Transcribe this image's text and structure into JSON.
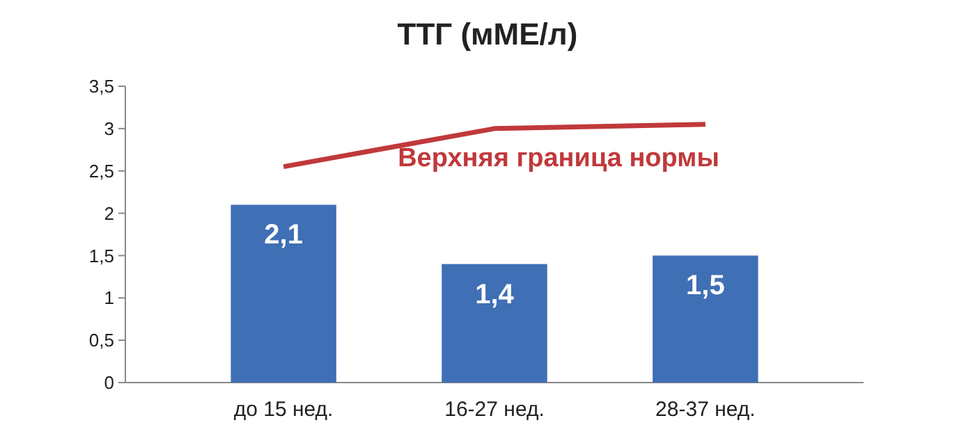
{
  "chart_data": {
    "type": "bar",
    "title": "ТТГ (мМЕ/л)",
    "categories": [
      "до 15 нед.",
      "16-27 нед.",
      "28-37 нед."
    ],
    "series": [
      {
        "color": "#3f6fb5",
        "values": [
          2.1,
          1.4,
          1.5
        ],
        "value_labels": [
          "2,1",
          "1,4",
          "1,5"
        ]
      },
      {
        "type": "line",
        "name": "Верхняя граница нормы",
        "color": "#c0393b",
        "values": [
          2.55,
          3.0,
          3.05
        ]
      }
    ],
    "ylim": [
      0,
      3.5
    ],
    "yticks": [
      0,
      {
        "value": 0.5,
        "label": "0,5"
      },
      1,
      {
        "value": 1.5,
        "label": "1,5"
      },
      2,
      {
        "value": 2.5,
        "label": "2,5"
      },
      3,
      {
        "value": 3.5,
        "label": "3,5"
      }
    ],
    "grid": false,
    "legend": false,
    "marker": "none",
    "line_style": "solid"
  }
}
